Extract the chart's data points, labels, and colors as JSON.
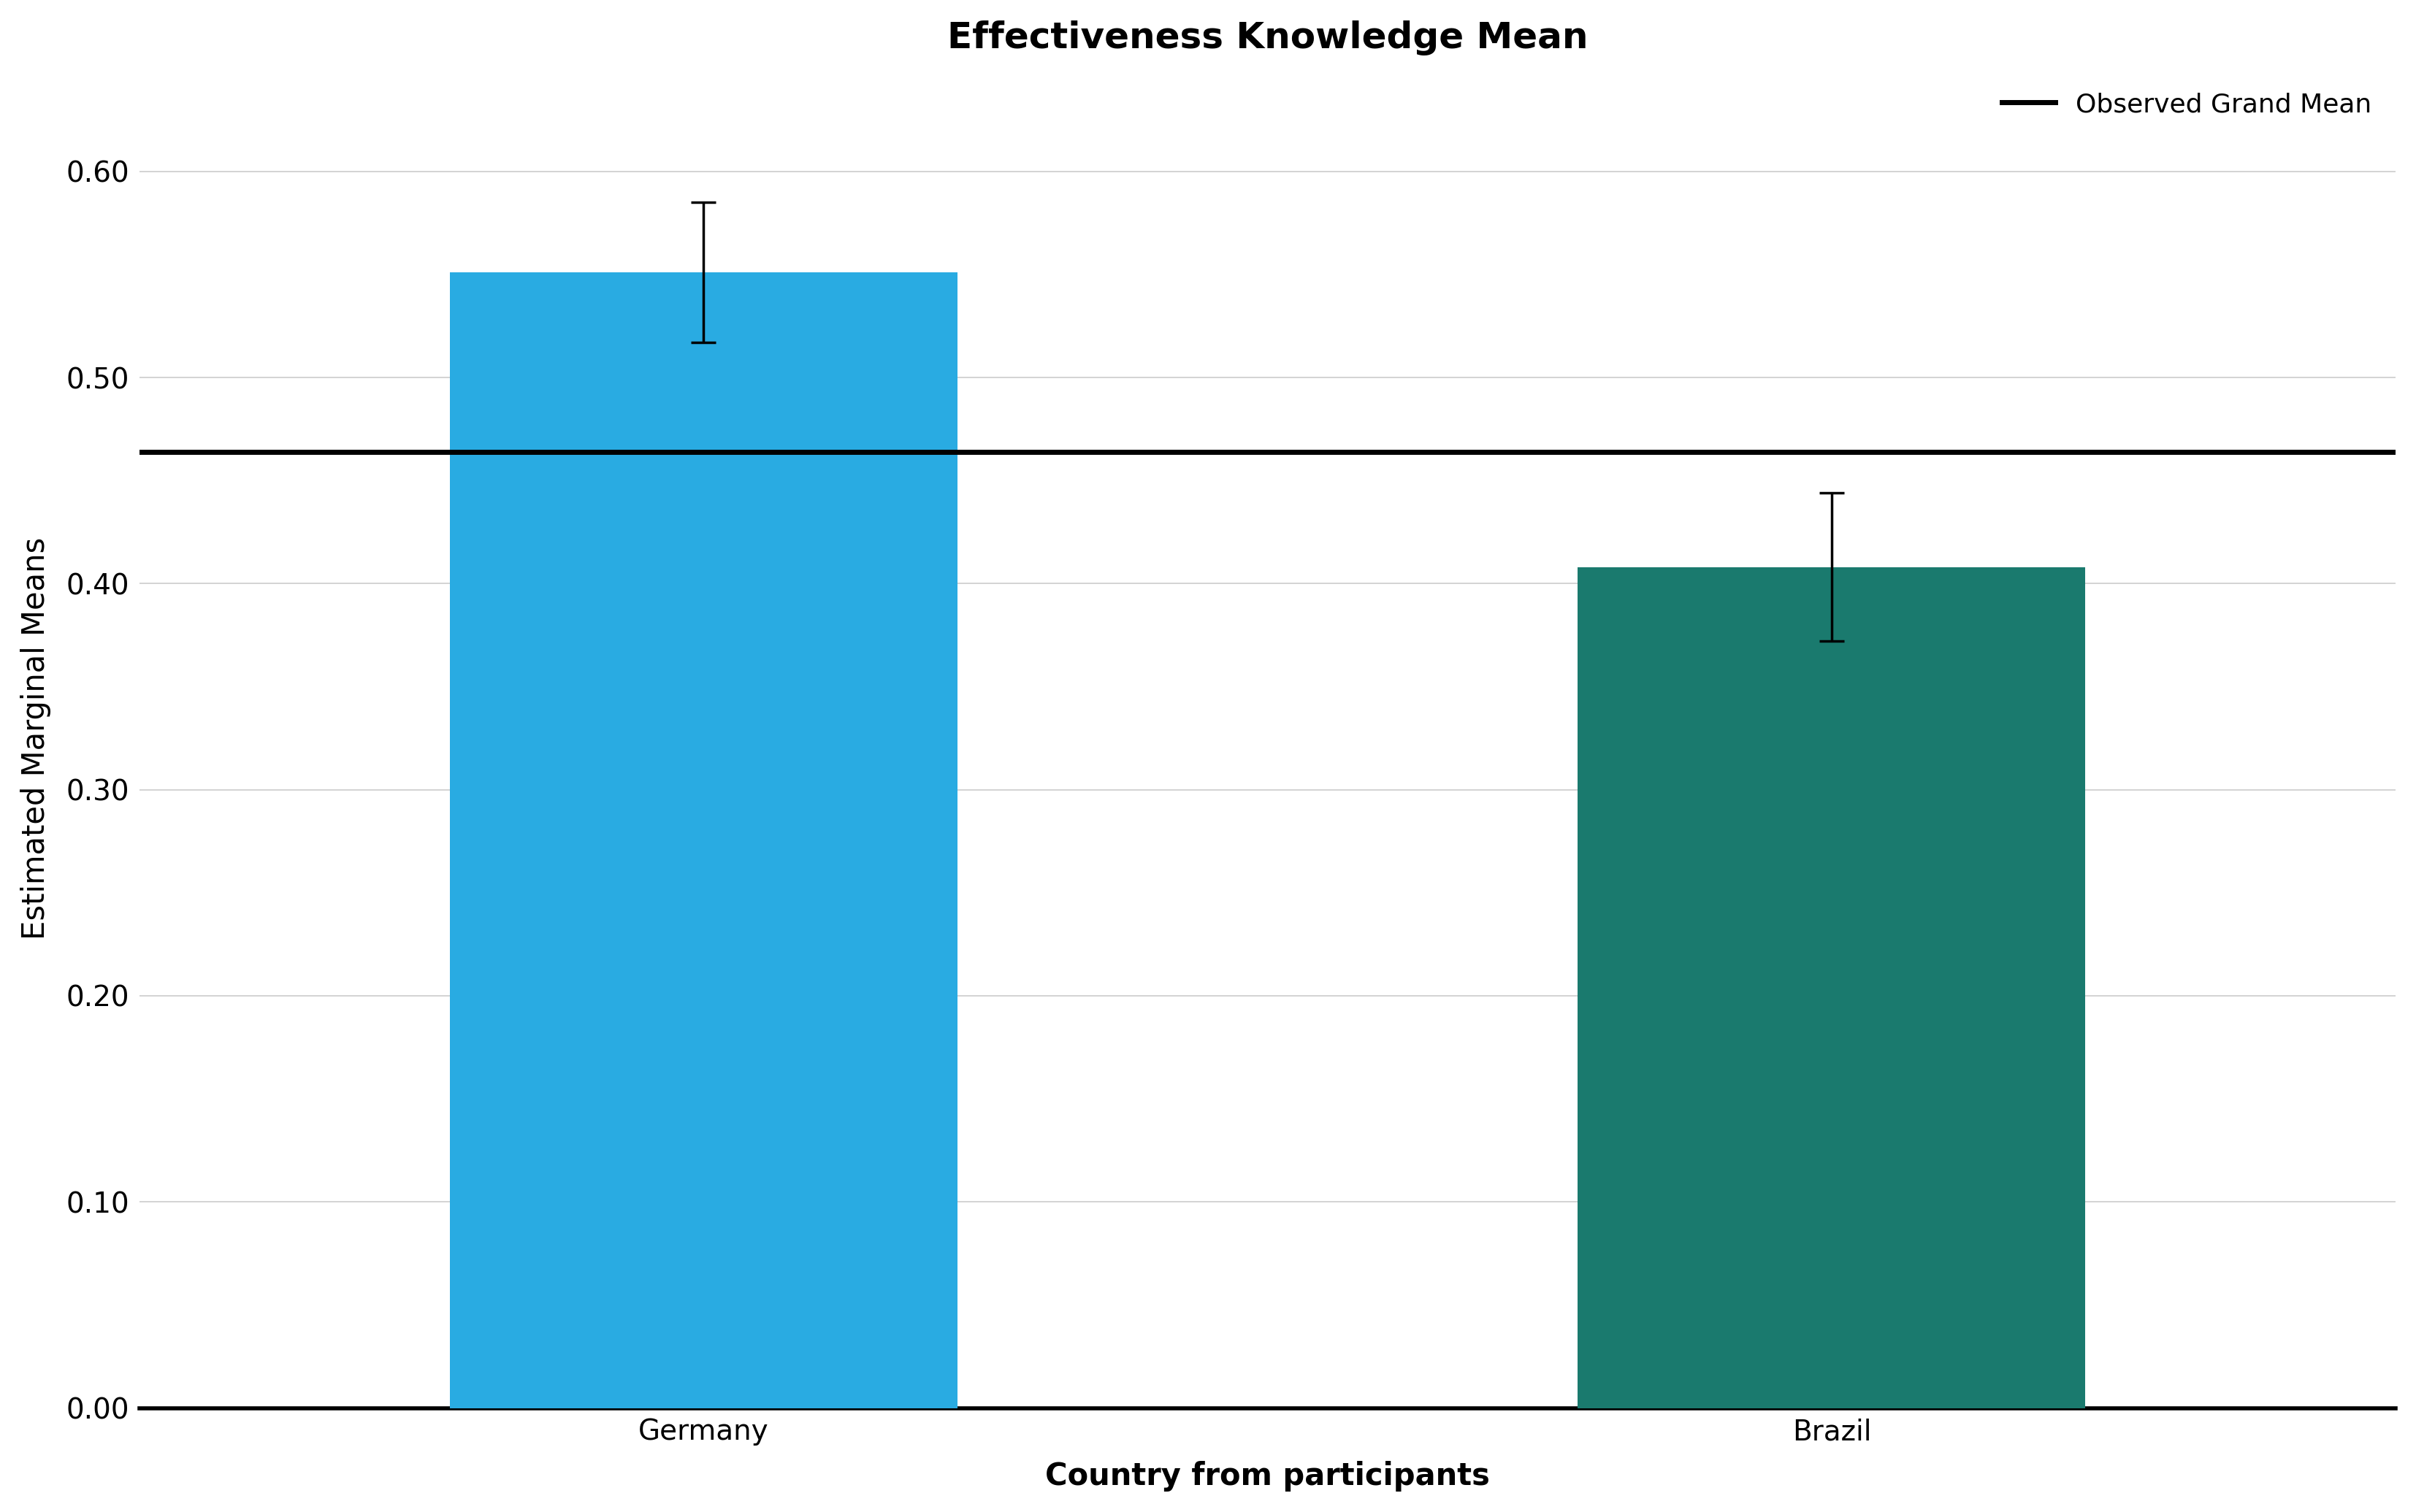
{
  "title": "Effectiveness Knowledge Mean",
  "xlabel": "Country from participants",
  "ylabel": "Estimated Marginal Means",
  "categories": [
    "Germany",
    "Brazil"
  ],
  "values": [
    0.551,
    0.408
  ],
  "error_upper": [
    0.585,
    0.444
  ],
  "error_lower": [
    0.517,
    0.372
  ],
  "bar_colors": [
    "#29ABE2",
    "#1A7A6E"
  ],
  "grand_mean": 0.464,
  "grand_mean_label": "Observed Grand Mean",
  "ylim": [
    0.0,
    0.65
  ],
  "yticks": [
    0.0,
    0.1,
    0.2,
    0.3,
    0.4,
    0.5,
    0.6
  ],
  "background_color": "#FFFFFF",
  "grid_color": "#CCCCCC",
  "bar_width": 0.45,
  "title_fontsize": 36,
  "axis_label_fontsize": 30,
  "tick_fontsize": 28,
  "legend_fontsize": 26
}
